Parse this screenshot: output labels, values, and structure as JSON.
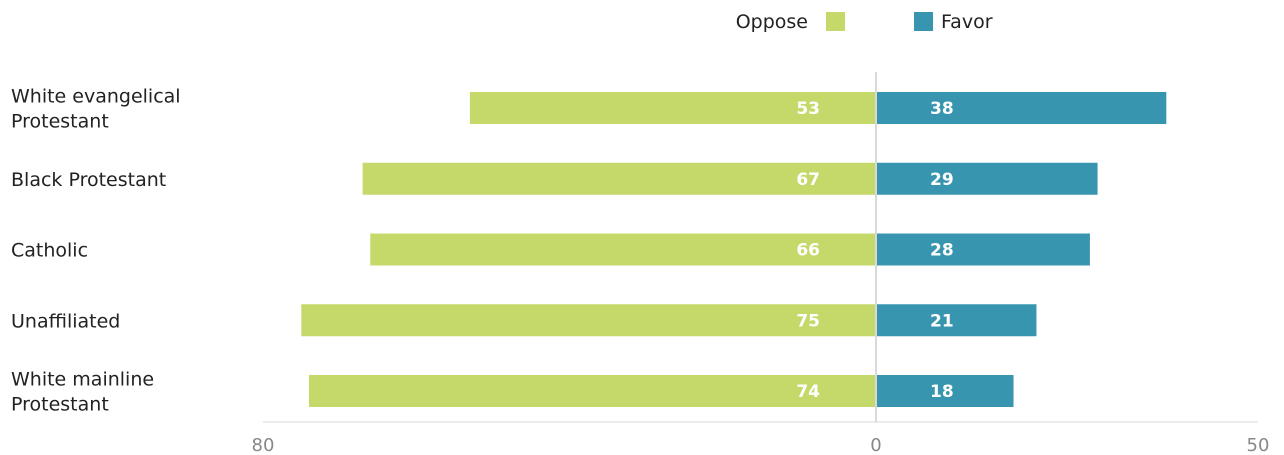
{
  "chart_data": {
    "type": "bar",
    "orientation": "horizontal-diverging",
    "categories": [
      "White evangelical\nProtestant",
      "Black Protestant",
      "Catholic",
      "Unaffiliated",
      "White mainline\nProtestant"
    ],
    "series": [
      {
        "name": "Oppose",
        "values": [
          53,
          67,
          66,
          75,
          74
        ],
        "color": "#c5d96b",
        "direction": "left"
      },
      {
        "name": "Favor",
        "values": [
          38,
          29,
          28,
          21,
          18
        ],
        "color": "#3795b0",
        "direction": "right"
      }
    ],
    "xlim_left": 80,
    "xlim_right": 50,
    "ticks": [
      "80",
      "0",
      "50"
    ],
    "grid": false,
    "legend_position": "top",
    "title": "",
    "xlabel": "",
    "ylabel": ""
  }
}
